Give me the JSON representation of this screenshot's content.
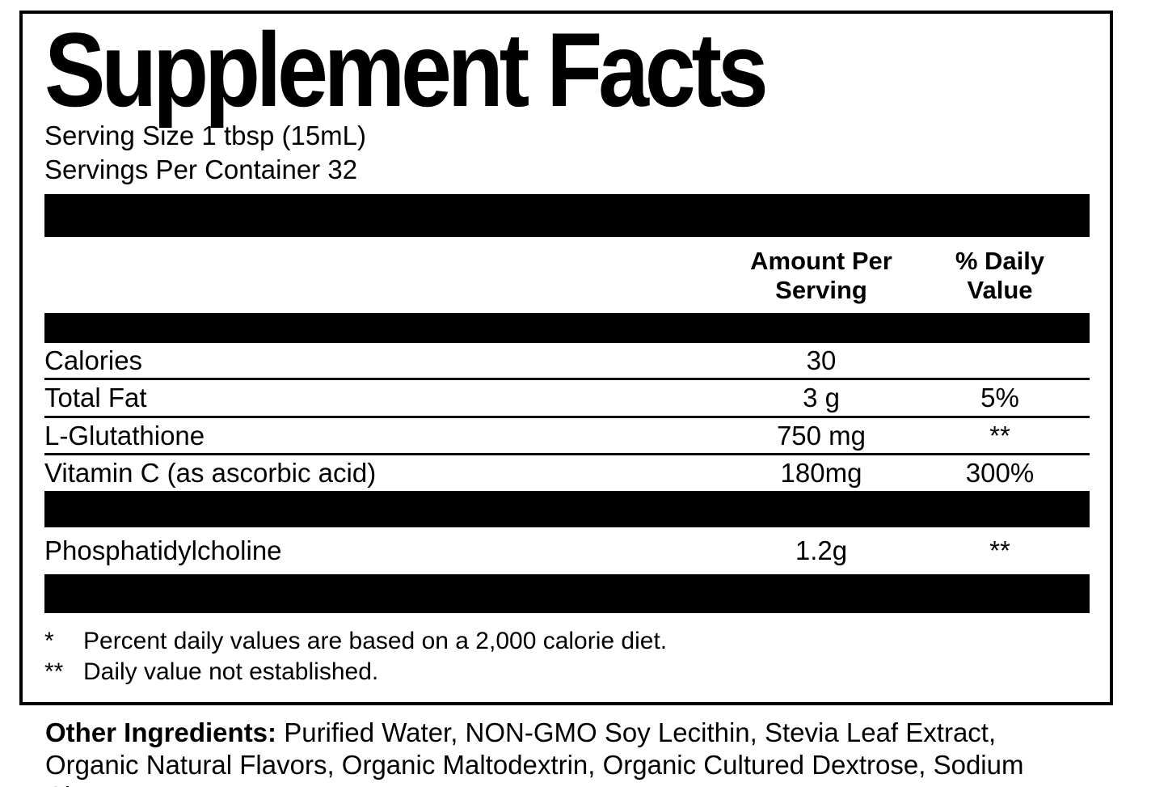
{
  "label": {
    "title": "Supplement Facts",
    "serving_size": "Serving Size 1 tbsp (15mL)",
    "servings_per_container": "Servings Per Container 32",
    "columns": {
      "amount": "Amount Per Serving",
      "daily": "% Daily Value"
    },
    "rows": [
      {
        "name": "Calories",
        "amount": "30",
        "daily": ""
      },
      {
        "name": "Total Fat",
        "amount": "3 g",
        "daily": "5%"
      },
      {
        "name": "L-Glutathione",
        "amount": "750 mg",
        "daily": "**"
      },
      {
        "name": "Vitamin C (as ascorbic acid)",
        "amount": "180mg",
        "daily": "300%"
      }
    ],
    "secondary_rows": [
      {
        "name": "Phosphatidylcholine",
        "amount": "1.2g",
        "daily": "**"
      }
    ],
    "footnotes": [
      {
        "marker": "*",
        "text": "Percent daily values are based on a 2,000 calorie diet."
      },
      {
        "marker": "**",
        "text": "Daily value not established."
      }
    ]
  },
  "other_ingredients": {
    "label": "Other Ingredients:",
    "text": " Purified Water, NON-GMO Soy Lecithin, Stevia Leaf Extract, Organic Natural Flavors, Organic Maltodextrin, Organic Cultured Dextrose, Sodium Citrate."
  },
  "colors": {
    "ink": "#000000",
    "background": "#ffffff"
  }
}
